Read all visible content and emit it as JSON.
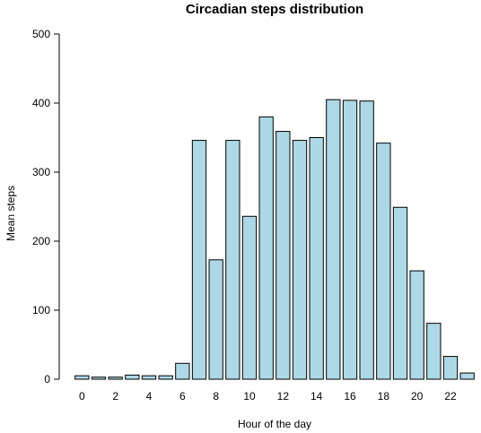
{
  "chart_data": {
    "type": "bar",
    "title": "Circadian steps distribution",
    "xlabel": "Hour of the day",
    "ylabel": "Mean steps",
    "categories": [
      "0",
      "1",
      "2",
      "3",
      "4",
      "5",
      "6",
      "7",
      "8",
      "9",
      "10",
      "11",
      "12",
      "13",
      "14",
      "15",
      "16",
      "17",
      "18",
      "19",
      "20",
      "21",
      "22",
      "23"
    ],
    "x_tick_labels": [
      "0",
      "2",
      "4",
      "6",
      "8",
      "10",
      "12",
      "14",
      "16",
      "18",
      "20",
      "22"
    ],
    "y_ticks": [
      0,
      100,
      200,
      300,
      400,
      500
    ],
    "ylim": [
      0,
      500
    ],
    "values": [
      5,
      3,
      3,
      6,
      5,
      5,
      23,
      346,
      173,
      346,
      236,
      380,
      359,
      346,
      350,
      405,
      404,
      403,
      342,
      249,
      157,
      81,
      33,
      9
    ],
    "bar_color": "#add8e6",
    "grid": false
  }
}
